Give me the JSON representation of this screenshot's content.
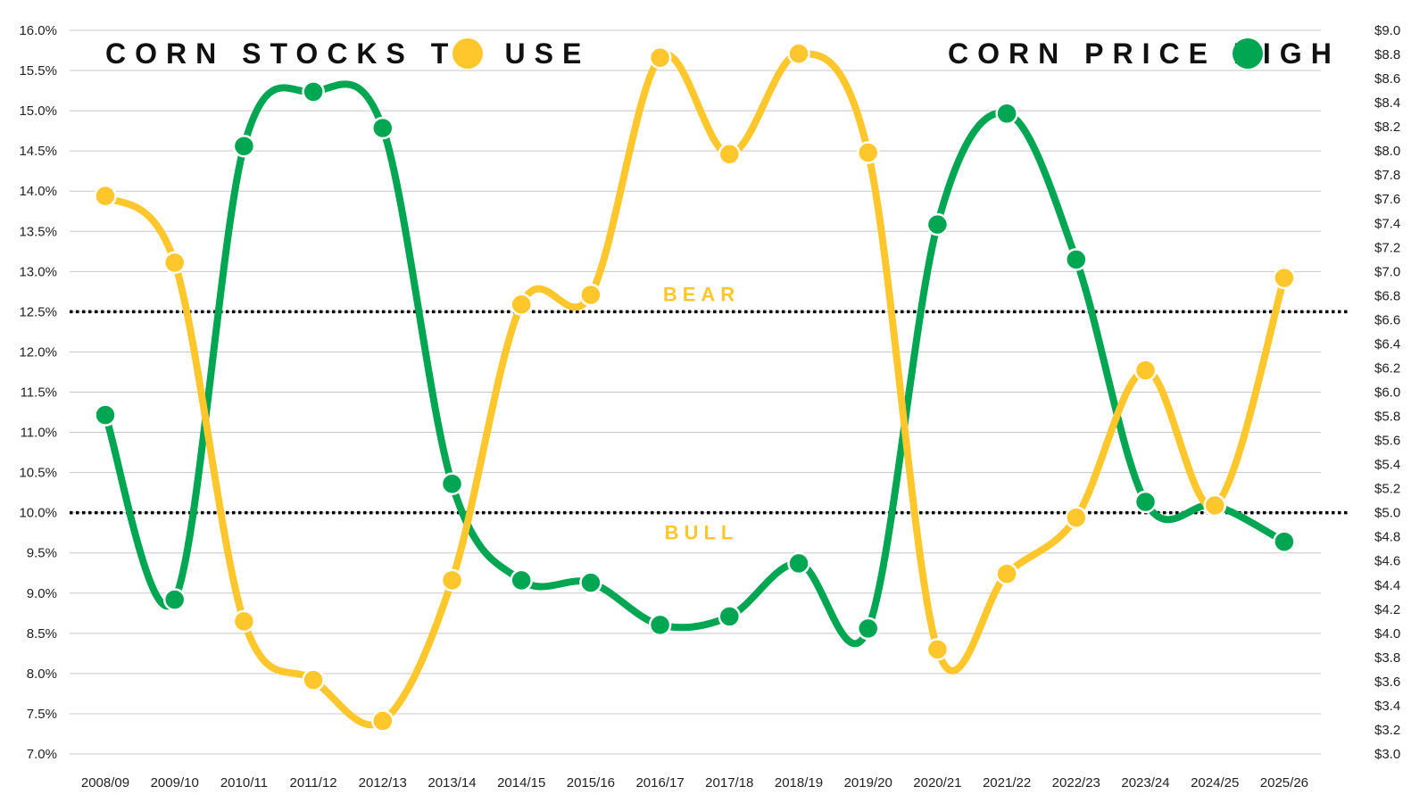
{
  "chart_data": {
    "type": "line",
    "categories": [
      "2008/09",
      "2009/10",
      "2010/11",
      "2011/12",
      "2012/13",
      "2013/14",
      "2014/15",
      "2015/16",
      "2016/17",
      "2017/18",
      "2018/19",
      "2019/20",
      "2020/21",
      "2021/22",
      "2022/23",
      "2023/24",
      "2024/25",
      "2025/26"
    ],
    "series": [
      {
        "name": "CORN STOCKS TO USE",
        "axis": "left",
        "color": "#FFC72C",
        "values": [
          13.94,
          13.11,
          8.65,
          7.92,
          7.41,
          9.16,
          12.59,
          12.71,
          15.66,
          14.46,
          15.71,
          14.48,
          8.3,
          9.24,
          9.94,
          11.77,
          10.09,
          12.92
        ]
      },
      {
        "name": "CORN PRICE HIGH",
        "axis": "right",
        "color": "#00A651",
        "values": [
          5.81,
          4.28,
          8.04,
          8.49,
          8.19,
          5.24,
          4.44,
          4.42,
          4.07,
          4.14,
          4.58,
          4.04,
          7.39,
          8.31,
          7.1,
          5.09,
          5.06,
          4.76
        ]
      }
    ],
    "left_axis": {
      "min": 7.0,
      "max": 16.0,
      "step": 0.5,
      "format": "percent"
    },
    "right_axis": {
      "min": 3.0,
      "max": 9.0,
      "step": 0.2,
      "format": "dollar"
    },
    "left_ticks": [
      "7.0%",
      "7.5%",
      "8.0%",
      "8.5%",
      "9.0%",
      "9.5%",
      "10.0%",
      "10.5%",
      "11.0%",
      "11.5%",
      "12.0%",
      "12.5%",
      "13.0%",
      "13.5%",
      "14.0%",
      "14.5%",
      "15.0%",
      "15.5%",
      "16.0%"
    ],
    "right_ticks": [
      "$3.0",
      "$3.2",
      "$3.4",
      "$3.6",
      "$3.8",
      "$4.0",
      "$4.2",
      "$4.4",
      "$4.6",
      "$4.8",
      "$5.0",
      "$5.2",
      "$5.4",
      "$5.6",
      "$5.8",
      "$6.0",
      "$6.2",
      "$6.4",
      "$6.6",
      "$6.8",
      "$7.0",
      "$7.2",
      "$7.4",
      "$7.6",
      "$7.8",
      "$8.0",
      "$8.2",
      "$8.4",
      "$8.6",
      "$8.8",
      "$9.0"
    ],
    "thresholds": [
      {
        "value": 12.5,
        "label": "BEAR"
      },
      {
        "value": 10.0,
        "label": "BULL"
      }
    ],
    "grid": true,
    "legend_placement": "top"
  },
  "colors": {
    "stocks": "#FFC72C",
    "price": "#00A651",
    "grid": "#c8c8c8",
    "threshold": "#000000"
  }
}
